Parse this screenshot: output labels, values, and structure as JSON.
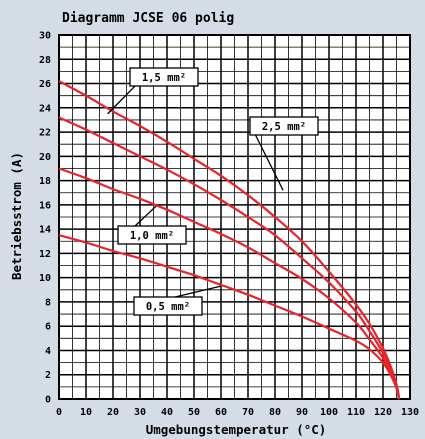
{
  "chart_data": {
    "type": "line",
    "title": "Diagramm JCSE 06 polig",
    "xlabel": "Umgebungstemperatur (°C)",
    "ylabel": "Betriebsstrom (A)",
    "xlim": [
      0,
      130
    ],
    "ylim": [
      0,
      30
    ],
    "xticks": [
      0,
      10,
      20,
      30,
      40,
      50,
      60,
      70,
      80,
      90,
      100,
      110,
      120,
      130
    ],
    "yticks": [
      0,
      2,
      4,
      6,
      8,
      10,
      12,
      14,
      16,
      18,
      20,
      22,
      24,
      26,
      28,
      30
    ],
    "grid": true,
    "line_color": "#e8232a",
    "series": [
      {
        "name": "1,5 mm²",
        "points": [
          [
            0,
            26.2
          ],
          [
            10,
            25.0
          ],
          [
            20,
            23.7
          ],
          [
            30,
            22.5
          ],
          [
            40,
            21.2
          ],
          [
            50,
            19.8
          ],
          [
            60,
            18.4
          ],
          [
            70,
            16.8
          ],
          [
            80,
            15.0
          ],
          [
            90,
            13.0
          ],
          [
            100,
            10.5
          ],
          [
            110,
            7.8
          ],
          [
            115,
            6.2
          ],
          [
            120,
            4.2
          ],
          [
            123,
            2.6
          ],
          [
            125,
            1.2
          ],
          [
            126,
            0
          ]
        ]
      },
      {
        "name": "2,5 mm²",
        "points": [
          [
            0,
            23.2
          ],
          [
            10,
            22.2
          ],
          [
            20,
            21.1
          ],
          [
            30,
            20.0
          ],
          [
            40,
            18.9
          ],
          [
            50,
            17.7
          ],
          [
            60,
            16.4
          ],
          [
            70,
            15.0
          ],
          [
            80,
            13.5
          ],
          [
            90,
            11.6
          ],
          [
            100,
            9.6
          ],
          [
            110,
            7.2
          ],
          [
            115,
            5.6
          ],
          [
            120,
            3.8
          ],
          [
            123,
            2.4
          ],
          [
            125,
            1.1
          ],
          [
            126,
            0
          ]
        ]
      },
      {
        "name": "1,0 mm²",
        "points": [
          [
            0,
            19.0
          ],
          [
            10,
            18.2
          ],
          [
            20,
            17.3
          ],
          [
            30,
            16.5
          ],
          [
            40,
            15.6
          ],
          [
            50,
            14.6
          ],
          [
            60,
            13.6
          ],
          [
            70,
            12.5
          ],
          [
            80,
            11.2
          ],
          [
            90,
            9.9
          ],
          [
            100,
            8.3
          ],
          [
            110,
            6.3
          ],
          [
            115,
            4.9
          ],
          [
            120,
            3.4
          ],
          [
            123,
            2.1
          ],
          [
            125,
            1.0
          ],
          [
            126,
            0
          ]
        ]
      },
      {
        "name": "0,5 mm²",
        "points": [
          [
            0,
            13.5
          ],
          [
            10,
            12.9
          ],
          [
            20,
            12.2
          ],
          [
            30,
            11.6
          ],
          [
            40,
            10.9
          ],
          [
            50,
            10.2
          ],
          [
            60,
            9.4
          ],
          [
            70,
            8.6
          ],
          [
            80,
            7.7
          ],
          [
            90,
            6.8
          ],
          [
            100,
            5.8
          ],
          [
            110,
            4.8
          ],
          [
            115,
            4.1
          ],
          [
            120,
            3.0
          ],
          [
            123,
            1.9
          ],
          [
            125,
            0.9
          ],
          [
            126,
            0
          ]
        ]
      }
    ],
    "annotations": [
      {
        "series": "1,5 mm²",
        "text": "1,5 mm²",
        "at": [
          18,
          23.5
        ]
      },
      {
        "series": "2,5 mm²",
        "text": "2,5 mm²",
        "at": [
          83,
          17.2
        ]
      },
      {
        "series": "1,0 mm²",
        "text": "1,0 mm²",
        "at": [
          36,
          15.9
        ]
      },
      {
        "series": "0,5 mm²",
        "text": "0,5 mm²",
        "at": [
          60,
          9.3
        ]
      }
    ]
  }
}
